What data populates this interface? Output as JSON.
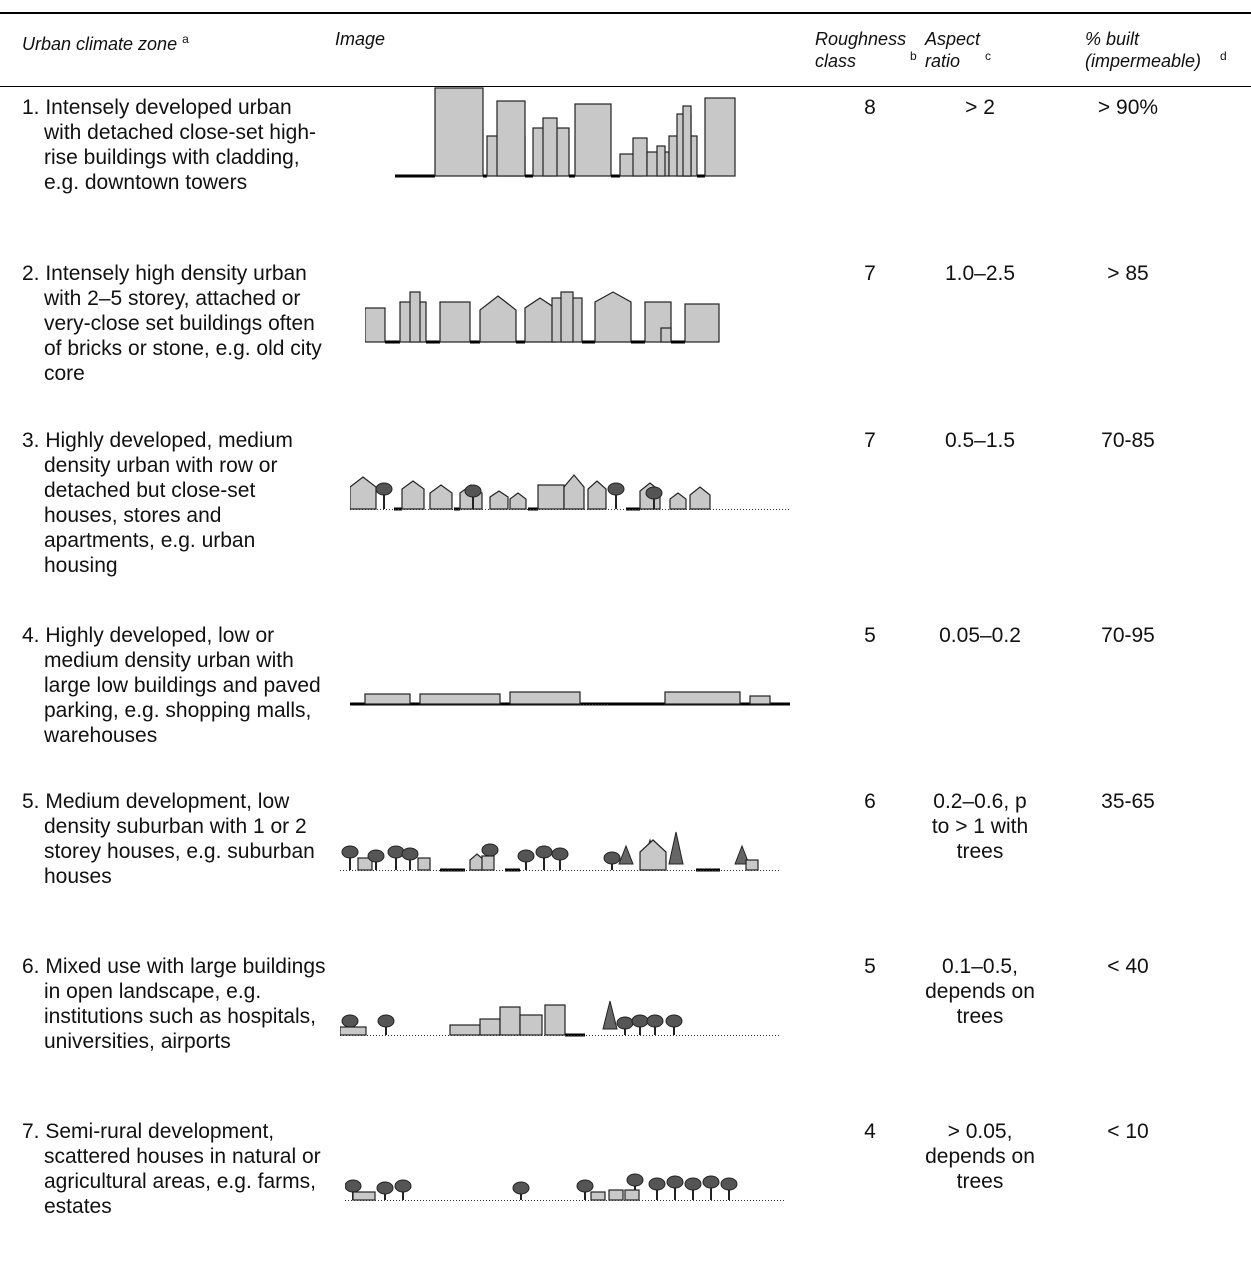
{
  "header": {
    "columns": [
      {
        "text": "Urban climate zone",
        "note": "a"
      },
      {
        "text": "Image"
      },
      {
        "text": "Roughness class",
        "note": "b"
      },
      {
        "text": "Aspect ratio",
        "note": "c"
      },
      {
        "text": "% built (impermeable)",
        "note": "d"
      }
    ]
  },
  "table": {
    "rows": [
      [
        "1. Intensely developed urban with detached close-set high-rise buildings with cladding, e.g. downtown towers",
        "8",
        "> 2",
        "> 90%"
      ],
      [
        "2. Intensely high density urban with 2–5 storey, attached or very-close set buildings often of bricks or stone, e.g. old city core",
        "7",
        "1.0–2.5",
        "> 85"
      ],
      [
        "3. Highly developed, medium density urban with row or detached but close-set houses, stores and apartments, e.g. urban housing",
        "7",
        "0.5–1.5",
        "70-85"
      ],
      [
        "4. Highly developed, low or medium density urban with large low buildings and paved parking, e.g. shopping malls, warehouses",
        "5",
        "0.05–0.2",
        "70-95"
      ],
      [
        "5. Medium development, low density suburban with 1 or 2 storey houses, e.g. suburban houses",
        "6",
        "0.2–0.6, p to > 1 with trees",
        "35-65"
      ],
      [
        "6. Mixed use with large buildings in open landscape, e.g. institutions such as hospitals, universities, airports",
        "5",
        "0.1–0.5, depends on trees",
        "< 40"
      ],
      [
        "7. Semi-rural development, scattered houses in natural or agricultural areas, e.g. farms, estates",
        "4",
        "> 0.05, depends on trees",
        "< 10"
      ]
    ]
  }
}
